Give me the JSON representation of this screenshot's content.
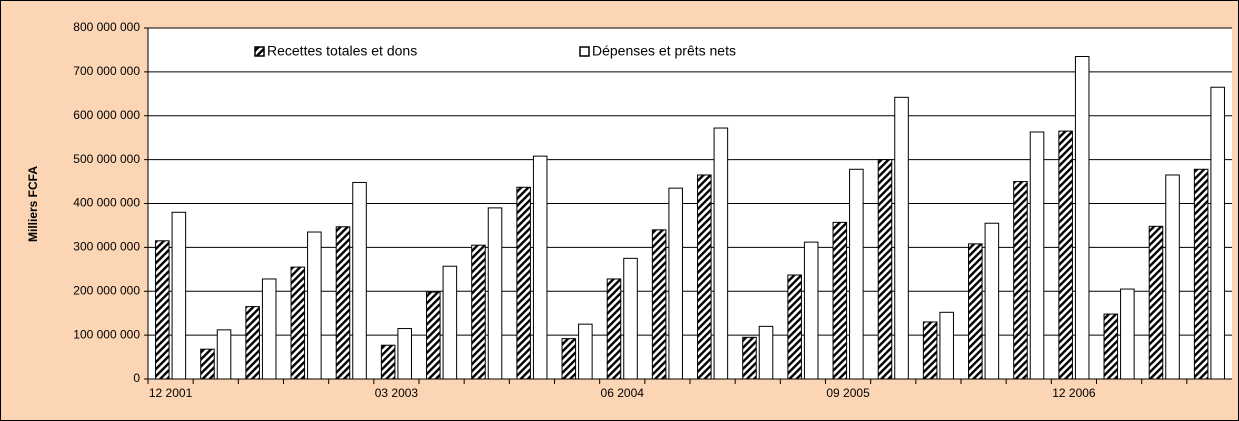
{
  "chart_data": {
    "type": "bar",
    "y_label": "Milliers FCFA",
    "categories": [
      "12 2001",
      null,
      null,
      null,
      null,
      "03 2003",
      null,
      null,
      null,
      null,
      "06 2004",
      null,
      null,
      null,
      null,
      "09 2005",
      null,
      null,
      null,
      null,
      "12 2006",
      null,
      null,
      null
    ],
    "series": [
      {
        "name": "Recettes totales et dons",
        "color": "#000000",
        "values": [
          315000000,
          68000000,
          165000000,
          255000000,
          347000000,
          77000000,
          198000000,
          305000000,
          437000000,
          92000000,
          228000000,
          340000000,
          465000000,
          95000000,
          237000000,
          357000000,
          500000000,
          130000000,
          308000000,
          450000000,
          565000000,
          148000000,
          348000000,
          478000000
        ]
      },
      {
        "name": "Dépenses et prêts nets",
        "color": "#ffffff",
        "values": [
          380000000,
          112000000,
          228000000,
          335000000,
          448000000,
          115000000,
          257000000,
          390000000,
          508000000,
          125000000,
          275000000,
          435000000,
          572000000,
          120000000,
          312000000,
          478000000,
          642000000,
          152000000,
          355000000,
          563000000,
          735000000,
          205000000,
          465000000,
          665000000
        ]
      }
    ],
    "ylim": [
      0,
      800000000
    ],
    "yticks": [
      0,
      {
        "value": 100000000,
        "label": "100 000 000"
      },
      {
        "value": 200000000,
        "label": "200 000 000"
      },
      {
        "value": 300000000,
        "label": "300 000 000"
      },
      {
        "value": 400000000,
        "label": "400 000 000"
      },
      {
        "value": 500000000,
        "label": "500 000 000"
      },
      {
        "value": 600000000,
        "label": "600 000 000"
      },
      {
        "value": 700000000,
        "label": "700 000 000"
      },
      {
        "value": 800000000,
        "label": "800 000 000"
      }
    ],
    "grid": true
  }
}
